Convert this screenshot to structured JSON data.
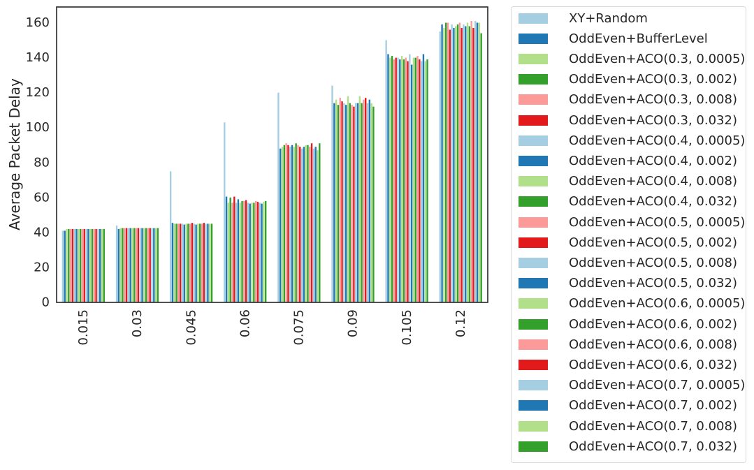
{
  "chart_data": {
    "type": "bar",
    "title": "",
    "xlabel": "",
    "ylabel": "Average Packet Delay",
    "ylim": [
      0,
      169
    ],
    "yticks": [
      0,
      20,
      40,
      60,
      80,
      100,
      120,
      140,
      160
    ],
    "grid": false,
    "legend_position": "outside-right",
    "categories": [
      "0.015",
      "0.03",
      "0.045",
      "0.06",
      "0.075",
      "0.09",
      "0.105",
      "0.12"
    ],
    "series": [
      {
        "name": "XY+Random",
        "color": "#a6cee3",
        "values": [
          41,
          44,
          75,
          103,
          120,
          124,
          150,
          155
        ]
      },
      {
        "name": "OddEven+BufferLevel",
        "color": "#1f78b4",
        "values": [
          41,
          42,
          45.5,
          60.5,
          88,
          114,
          142,
          159
        ]
      },
      {
        "name": "OddEven+ACO(0.3, 0.0005)",
        "color": "#b2df8a",
        "values": [
          42,
          42.5,
          45,
          57,
          89,
          116,
          140,
          157
        ]
      },
      {
        "name": "OddEven+ACO(0.3, 0.002)",
        "color": "#33a02c",
        "values": [
          42,
          42.5,
          45,
          60,
          90,
          113,
          141,
          160
        ]
      },
      {
        "name": "OddEven+ACO(0.3, 0.008)",
        "color": "#fb9a99",
        "values": [
          42,
          42.5,
          45,
          57,
          91,
          117,
          139,
          160
        ]
      },
      {
        "name": "OddEven+ACO(0.3, 0.032)",
        "color": "#e31a1c",
        "values": [
          42,
          42.5,
          45,
          60.5,
          90,
          115,
          140,
          156
        ]
      },
      {
        "name": "OddEven+ACO(0.4, 0.0005)",
        "color": "#a6cee3",
        "values": [
          42,
          42.5,
          45,
          57,
          89,
          114,
          140,
          159
        ]
      },
      {
        "name": "OddEven+ACO(0.4, 0.002)",
        "color": "#1f78b4",
        "values": [
          42,
          42.5,
          44.5,
          59,
          90,
          113,
          139,
          157
        ]
      },
      {
        "name": "OddEven+ACO(0.4, 0.008)",
        "color": "#b2df8a",
        "values": [
          42,
          42.5,
          45,
          57,
          89,
          118,
          141,
          158
        ]
      },
      {
        "name": "OddEven+ACO(0.4, 0.032)",
        "color": "#33a02c",
        "values": [
          42,
          42.5,
          45,
          58,
          91,
          114,
          139,
          159
        ]
      },
      {
        "name": "OddEven+ACO(0.5, 0.0005)",
        "color": "#fb9a99",
        "values": [
          42,
          42.5,
          45,
          58,
          90,
          113,
          140,
          160
        ]
      },
      {
        "name": "OddEven+ACO(0.5, 0.002)",
        "color": "#e31a1c",
        "values": [
          42,
          42.5,
          45.5,
          58.5,
          89,
          112,
          138,
          157
        ]
      },
      {
        "name": "OddEven+ACO(0.5, 0.008)",
        "color": "#a6cee3",
        "values": [
          42,
          42.5,
          45,
          57,
          88,
          114,
          142,
          159
        ]
      },
      {
        "name": "OddEven+ACO(0.5, 0.032)",
        "color": "#1f78b4",
        "values": [
          42,
          42.5,
          44.5,
          56.5,
          89,
          114,
          136,
          158
        ]
      },
      {
        "name": "OddEven+ACO(0.6, 0.0005)",
        "color": "#b2df8a",
        "values": [
          42,
          42.5,
          45,
          57,
          90,
          118,
          140,
          160
        ]
      },
      {
        "name": "OddEven+ACO(0.6, 0.002)",
        "color": "#33a02c",
        "values": [
          42,
          42.5,
          45,
          57,
          90,
          114,
          140,
          158
        ]
      },
      {
        "name": "OddEven+ACO(0.6, 0.008)",
        "color": "#fb9a99",
        "values": [
          42,
          42.5,
          45,
          58,
          89,
          116,
          141,
          161
        ]
      },
      {
        "name": "OddEven+ACO(0.6, 0.032)",
        "color": "#e31a1c",
        "values": [
          42,
          42.5,
          45.5,
          57.5,
          91,
          117,
          139,
          157
        ]
      },
      {
        "name": "OddEven+ACO(0.7, 0.0005)",
        "color": "#a6cee3",
        "values": [
          42,
          42.5,
          45,
          57,
          88,
          114,
          138,
          161
        ]
      },
      {
        "name": "OddEven+ACO(0.7, 0.002)",
        "color": "#1f78b4",
        "values": [
          42,
          42.5,
          45,
          56.5,
          89,
          116,
          142,
          160
        ]
      },
      {
        "name": "OddEven+ACO(0.7, 0.008)",
        "color": "#b2df8a",
        "values": [
          42,
          42.5,
          45,
          57.5,
          87,
          114,
          138,
          160
        ]
      },
      {
        "name": "OddEven+ACO(0.7, 0.032)",
        "color": "#33a02c",
        "values": [
          42,
          42.5,
          45,
          58,
          91,
          112,
          139,
          154
        ]
      }
    ]
  }
}
